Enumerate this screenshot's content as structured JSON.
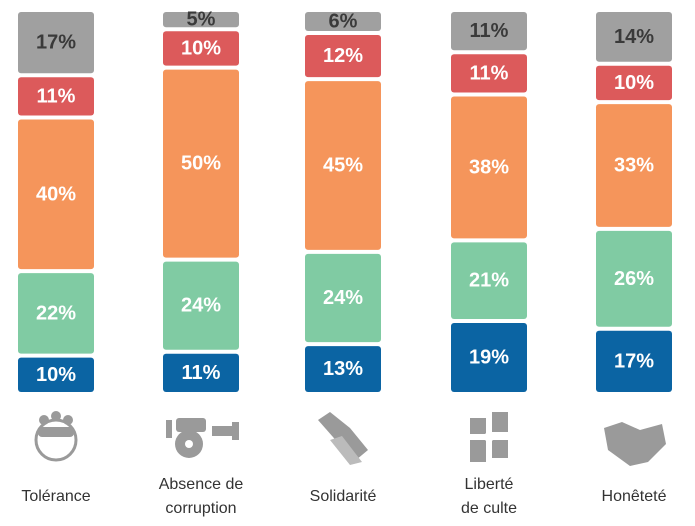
{
  "chart_data": {
    "type": "stacked-bar",
    "categories": [
      "Tolérance",
      "Absence de\ncorruption",
      "Solidarité",
      "Liberté\nde culte",
      "Honêteté"
    ],
    "ylim": [
      0,
      100
    ],
    "series": [
      {
        "color": "#0b64a3",
        "label_color": "#ffffff",
        "values": [
          10,
          11,
          13,
          19,
          17
        ],
        "value_labels": [
          "10%",
          "11%",
          "13%",
          "19%",
          "17%"
        ]
      },
      {
        "color": "#80cba3",
        "label_color": "#ffffff",
        "values": [
          22,
          24,
          24,
          21,
          26
        ],
        "value_labels": [
          "22%",
          "24%",
          "24%",
          "21%",
          "26%"
        ]
      },
      {
        "color": "#f5955b",
        "label_color": "#ffffff",
        "values": [
          40,
          50,
          45,
          38,
          33
        ],
        "value_labels": [
          "40%",
          "50%",
          "45%",
          "38%",
          "33%"
        ]
      },
      {
        "color": "#dc5a5b",
        "label_color": "#ffffff",
        "values": [
          11,
          10,
          12,
          11,
          10
        ],
        "value_labels": [
          "11%",
          "10%",
          "12%",
          "11%",
          "10%"
        ]
      },
      {
        "color": "#a0a0a0",
        "label_color": "#3a3a3a",
        "values": [
          17,
          5,
          6,
          11,
          14
        ],
        "value_labels": [
          "17%",
          "5%",
          "6%",
          "11%",
          "14%"
        ]
      }
    ]
  }
}
